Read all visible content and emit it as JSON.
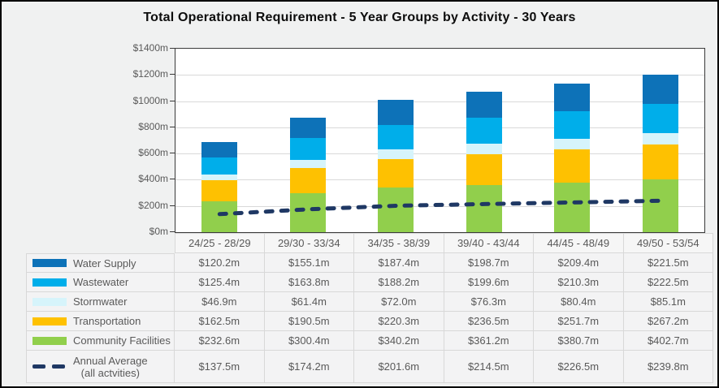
{
  "chart_data": {
    "type": "bar",
    "stacked": true,
    "title": "Total Operational Requirement - 5 Year Groups by Activity - 30 Years",
    "categories": [
      "24/25 - 28/29",
      "29/30 - 33/34",
      "34/35 - 38/39",
      "39/40 - 43/44",
      "44/45 - 48/49",
      "49/50 - 53/54"
    ],
    "series": [
      {
        "name": "Water Supply",
        "color": "#0d72b8",
        "values": [
          120.2,
          155.1,
          187.4,
          198.7,
          209.4,
          221.5
        ]
      },
      {
        "name": "Wastewater",
        "color": "#00aeea",
        "values": [
          125.4,
          163.8,
          188.2,
          199.6,
          210.3,
          222.5
        ]
      },
      {
        "name": "Stormwater",
        "color": "#d6f4fb",
        "values": [
          46.9,
          61.4,
          72.0,
          76.3,
          80.4,
          85.1
        ]
      },
      {
        "name": "Transportation",
        "color": "#fec101",
        "values": [
          162.5,
          190.5,
          220.3,
          236.5,
          251.7,
          267.2
        ]
      },
      {
        "name": "Community Facilities",
        "color": "#91cf4c",
        "values": [
          232.6,
          300.4,
          340.2,
          361.2,
          380.7,
          402.7
        ]
      }
    ],
    "line_series": {
      "name": "Annual Average",
      "name_line2": "(all actvities)",
      "color": "#1f3864",
      "style": "dashed",
      "values": [
        137.5,
        174.2,
        201.6,
        214.5,
        226.5,
        239.8
      ]
    },
    "ylim": [
      0,
      1400
    ],
    "ytick_step": 200,
    "ytick_labels": [
      "$0m",
      "$200m",
      "$400m",
      "$600m",
      "$800m",
      "$1000m",
      "$1200m",
      "$1400m"
    ],
    "grid": true,
    "legend_position": "table-left-column"
  },
  "table": {
    "columns": [
      "24/25 - 28/29",
      "29/30 - 33/34",
      "34/35 - 38/39",
      "39/40 - 43/44",
      "44/45 - 48/49",
      "49/50 - 53/54"
    ],
    "rows": [
      {
        "label": "Water Supply",
        "swatch": "bar",
        "color": "#0d72b8",
        "values": [
          "$120.2m",
          "$155.1m",
          "$187.4m",
          "$198.7m",
          "$209.4m",
          "$221.5m"
        ]
      },
      {
        "label": "Wastewater",
        "swatch": "bar",
        "color": "#00aeea",
        "values": [
          "$125.4m",
          "$163.8m",
          "$188.2m",
          "$199.6m",
          "$210.3m",
          "$222.5m"
        ]
      },
      {
        "label": "Stormwater",
        "swatch": "bar",
        "color": "#d6f4fb",
        "values": [
          "$46.9m",
          "$61.4m",
          "$72.0m",
          "$76.3m",
          "$80.4m",
          "$85.1m"
        ]
      },
      {
        "label": "Transportation",
        "swatch": "bar",
        "color": "#fec101",
        "values": [
          "$162.5m",
          "$190.5m",
          "$220.3m",
          "$236.5m",
          "$251.7m",
          "$267.2m"
        ]
      },
      {
        "label": "Community Facilities",
        "swatch": "bar",
        "color": "#91cf4c",
        "values": [
          "$232.6m",
          "$300.4m",
          "$340.2m",
          "$361.2m",
          "$380.7m",
          "$402.7m"
        ]
      },
      {
        "label": "Annual Average",
        "label_line2": "(all actvities)",
        "swatch": "dash",
        "color": "#1f3864",
        "values": [
          "$137.5m",
          "$174.2m",
          "$201.6m",
          "$214.5m",
          "$226.5m",
          "$239.8m"
        ]
      }
    ]
  },
  "colors": {
    "background": "#f0f1f1",
    "plot_background": "#ffffff",
    "plot_border": "#3a3a3a",
    "gridline": "#d9d9d9",
    "axis_text": "#595959",
    "table_text": "#595959",
    "table_border": "#d8d8d8",
    "outer_frame": "#000000"
  }
}
